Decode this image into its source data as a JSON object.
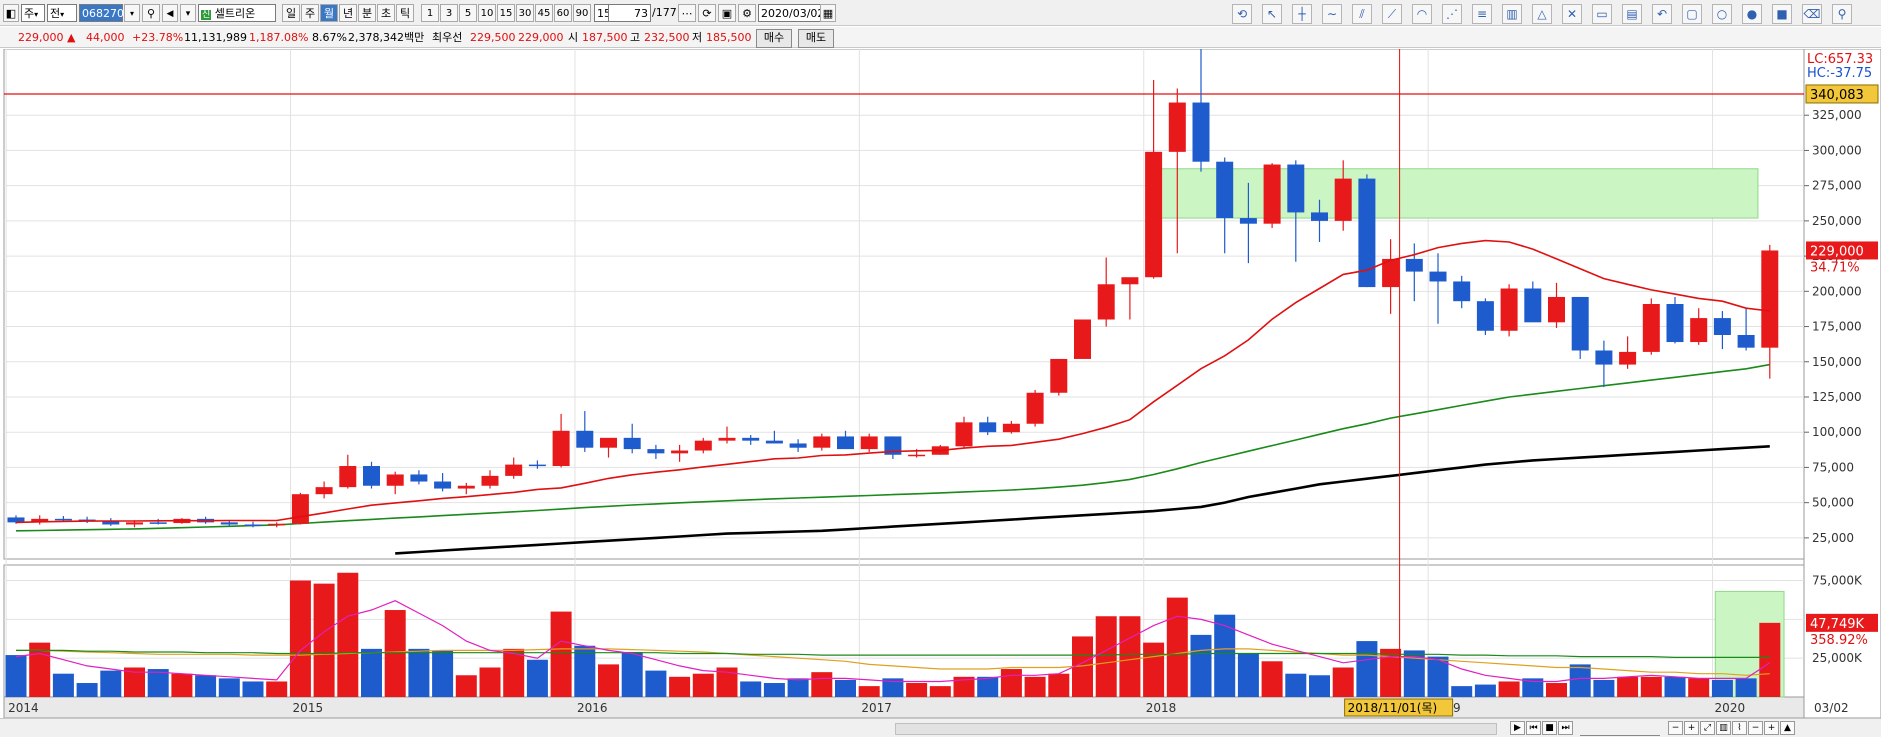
{
  "toolbar": {
    "left_combo": "주",
    "mode_combo": "전",
    "code": "068270",
    "stock_name": "셀트리온",
    "periods": [
      "일",
      "주",
      "월",
      "년",
      "분",
      "초",
      "틱"
    ],
    "active_period": "월",
    "intervals": [
      "1",
      "3",
      "5",
      "10",
      "15",
      "30",
      "45",
      "60",
      "90"
    ],
    "interval_value": "15",
    "count": "73",
    "count_total": "/177",
    "date": "2020/03/02"
  },
  "infobar": {
    "price": "229,000 ▲",
    "change": "44,000",
    "change_pct": "+23.78%",
    "volume": "11,131,989",
    "volume_pct": "1,187.08%",
    "turnover": "8.67%",
    "amount": "2,378,342백만",
    "priority_label": "최우선",
    "priority_ask": "229,500",
    "priority_bid": "229,000",
    "open_label": "시",
    "open": "187,500",
    "high_label": "고",
    "high": "232,500",
    "low_label": "저",
    "low": "185,500",
    "buy_label": "매수",
    "sell_label": "매도"
  },
  "colors": {
    "up": "#e8191a",
    "down": "#1e5bcc",
    "ma_red": "#e01010",
    "ma_green": "#1a8a1a",
    "ma_black": "#000000",
    "vol_ma_pink": "#e020c0",
    "vol_ma_orange": "#e0a020",
    "box_fill": "#ccf5c4"
  },
  "chart_data": {
    "type": "candlestick",
    "period": "monthly",
    "x": [
      "2014-01",
      "2014-02",
      "2014-03",
      "2014-04",
      "2014-05",
      "2014-06",
      "2014-07",
      "2014-08",
      "2014-09",
      "2014-10",
      "2014-11",
      "2014-12",
      "2015-01",
      "2015-02",
      "2015-03",
      "2015-04",
      "2015-05",
      "2015-06",
      "2015-07",
      "2015-08",
      "2015-09",
      "2015-10",
      "2015-11",
      "2015-12",
      "2016-01",
      "2016-02",
      "2016-03",
      "2016-04",
      "2016-05",
      "2016-06",
      "2016-07",
      "2016-08",
      "2016-09",
      "2016-10",
      "2016-11",
      "2016-12",
      "2017-01",
      "2017-02",
      "2017-03",
      "2017-04",
      "2017-05",
      "2017-06",
      "2017-07",
      "2017-08",
      "2017-09",
      "2017-10",
      "2017-11",
      "2017-12",
      "2018-01",
      "2018-02",
      "2018-03",
      "2018-04",
      "2018-05",
      "2018-06",
      "2018-07",
      "2018-08",
      "2018-09",
      "2018-10",
      "2018-11",
      "2018-12",
      "2019-01",
      "2019-02",
      "2019-03",
      "2019-04",
      "2019-05",
      "2019-06",
      "2019-07",
      "2019-08",
      "2019-09",
      "2019-10",
      "2019-11",
      "2019-12",
      "2020-01",
      "2020-02",
      "2020-03"
    ],
    "ohlc": [
      [
        39500,
        41000,
        35000,
        36000
      ],
      [
        36000,
        41000,
        34500,
        38500
      ],
      [
        38500,
        40500,
        36500,
        38000
      ],
      [
        38000,
        40000,
        35500,
        37000
      ],
      [
        37000,
        39000,
        33500,
        34500
      ],
      [
        34500,
        37500,
        32500,
        36000
      ],
      [
        36000,
        38500,
        34500,
        35500
      ],
      [
        35500,
        39000,
        35000,
        38500
      ],
      [
        38500,
        40000,
        35000,
        36000
      ],
      [
        36000,
        37500,
        33000,
        34500
      ],
      [
        34500,
        36500,
        32500,
        34000
      ],
      [
        34000,
        36000,
        32500,
        35000
      ],
      [
        35000,
        57000,
        34500,
        56000
      ],
      [
        56000,
        65000,
        53000,
        61000
      ],
      [
        61000,
        84000,
        60000,
        76000
      ],
      [
        76000,
        79000,
        60000,
        62000
      ],
      [
        62000,
        72000,
        56000,
        70000
      ],
      [
        70000,
        73000,
        63000,
        65000
      ],
      [
        65000,
        71000,
        58000,
        60000
      ],
      [
        60000,
        64000,
        56000,
        62000
      ],
      [
        62000,
        73000,
        60000,
        69000
      ],
      [
        69000,
        82000,
        67000,
        77000
      ],
      [
        77000,
        80000,
        74000,
        76000
      ],
      [
        76000,
        113000,
        75000,
        101000
      ],
      [
        101000,
        115000,
        86000,
        89000
      ],
      [
        89000,
        95000,
        82000,
        96000
      ],
      [
        96000,
        106000,
        85000,
        88000
      ],
      [
        88000,
        91000,
        81000,
        85000
      ],
      [
        85000,
        91000,
        79000,
        87000
      ],
      [
        87000,
        96000,
        85000,
        94000
      ],
      [
        94000,
        104000,
        92000,
        96000
      ],
      [
        96000,
        98000,
        91000,
        94000
      ],
      [
        94000,
        101000,
        93000,
        92000
      ],
      [
        92000,
        95000,
        86000,
        89000
      ],
      [
        89000,
        99000,
        87000,
        97000
      ],
      [
        97000,
        101000,
        89000,
        88000
      ],
      [
        88000,
        99000,
        86000,
        97000
      ],
      [
        97000,
        97000,
        81000,
        84000
      ],
      [
        84000,
        88000,
        82000,
        84000
      ],
      [
        84000,
        91000,
        84000,
        90000
      ],
      [
        90000,
        111000,
        89000,
        107000
      ],
      [
        107000,
        111000,
        98000,
        100000
      ],
      [
        100000,
        108000,
        99000,
        106000
      ],
      [
        106000,
        130000,
        104000,
        128000
      ],
      [
        128000,
        152000,
        126000,
        152000
      ],
      [
        152000,
        179000,
        152000,
        180000
      ],
      [
        180000,
        224000,
        175000,
        205000
      ],
      [
        205000,
        209000,
        180000,
        210000
      ],
      [
        210000,
        350000,
        209000,
        299000
      ],
      [
        299000,
        344000,
        227000,
        334000
      ],
      [
        334000,
        378000,
        285000,
        292000
      ],
      [
        292000,
        295000,
        227000,
        252000
      ],
      [
        252000,
        277000,
        220000,
        248000
      ],
      [
        248000,
        291000,
        245000,
        290000
      ],
      [
        290000,
        293000,
        221000,
        256000
      ],
      [
        256000,
        265000,
        235000,
        250000
      ],
      [
        250000,
        293000,
        243000,
        280000
      ],
      [
        280000,
        283000,
        203000,
        203000
      ],
      [
        203000,
        237000,
        184000,
        223000
      ],
      [
        223000,
        234000,
        193000,
        214000
      ],
      [
        214000,
        227000,
        177000,
        207000
      ],
      [
        207000,
        211000,
        188000,
        193000
      ],
      [
        193000,
        195000,
        169000,
        172000
      ],
      [
        172000,
        205000,
        168000,
        202000
      ],
      [
        202000,
        207000,
        179000,
        178000
      ],
      [
        178000,
        206000,
        174000,
        196000
      ],
      [
        196000,
        196000,
        152000,
        158000
      ],
      [
        158000,
        165000,
        132000,
        148000
      ],
      [
        148000,
        168000,
        145000,
        157000
      ],
      [
        157000,
        195000,
        155000,
        191000
      ],
      [
        191000,
        196000,
        163000,
        164000
      ],
      [
        164000,
        188000,
        162000,
        181000
      ],
      [
        181000,
        186000,
        159000,
        169000
      ],
      [
        169000,
        188000,
        158000,
        160000
      ],
      [
        160000,
        233000,
        138000,
        229000
      ]
    ],
    "volume": [
      27000,
      35000,
      15000,
      9000,
      17000,
      19000,
      18000,
      15000,
      14000,
      12000,
      10000,
      10000,
      75000,
      73000,
      80000,
      31000,
      56000,
      31000,
      30000,
      14000,
      19000,
      31000,
      24000,
      55000,
      33000,
      21000,
      29000,
      17000,
      13000,
      15000,
      19000,
      10000,
      9000,
      12000,
      16000,
      11000,
      7000,
      12000,
      9000,
      7000,
      13000,
      13000,
      18000,
      13000,
      15000,
      39000,
      52000,
      52000,
      35000,
      64000,
      40000,
      53000,
      28000,
      23000,
      15000,
      14000,
      19000,
      36000,
      31000,
      30000,
      26000,
      7000,
      8000,
      10000,
      12000,
      9000,
      21000,
      11000,
      13000,
      13000,
      13000,
      12000,
      11000,
      12000,
      47749
    ],
    "y_ticks": [
      "325,000",
      "300,000",
      "275,000",
      "250,000",
      "225,000",
      "200,000",
      "175,000",
      "150,000",
      "125,000",
      "100,000",
      "75,000",
      "50,000",
      "25,000"
    ],
    "ylim": [
      10000,
      372000
    ],
    "vol_ticks": [
      "75,000K",
      "50,000K",
      "25,000K"
    ],
    "vol_ylim": [
      0,
      85000
    ],
    "x_ticks": [
      "2014",
      "2015",
      "2016",
      "2017",
      "2018",
      "2019",
      "2020"
    ],
    "x_tick_index": [
      0,
      12,
      24,
      36,
      48,
      60,
      72
    ],
    "right_date": "03/02",
    "crosshair_date": "2018/11/01(목)",
    "crosshair_index": 58,
    "lc_label": "LC:657.33",
    "hc_label": "HC:-37.75",
    "hline_value": 340083,
    "hline_label": "340,083",
    "price_label": "229,000",
    "price_change_pct": "34.71%",
    "vol_label": "47,749K",
    "vol_pct": "358.92%",
    "ma_red": {
      "start": 0,
      "values": [
        36000,
        36400,
        36700,
        36900,
        37000,
        37000,
        37100,
        37200,
        37200,
        37300,
        37300,
        37300,
        40000,
        42700,
        45500,
        48200,
        49800,
        51300,
        53000,
        54200,
        55700,
        57300,
        59400,
        60500,
        63700,
        67200,
        69800,
        71600,
        73300,
        75400,
        77200,
        79100,
        81100,
        81700,
        83500,
        83900,
        85200,
        86300,
        86800,
        87100,
        88700,
        90000,
        90600,
        92800,
        95000,
        99000,
        103500,
        108900,
        121600,
        133300,
        145100,
        154200,
        165500,
        180200,
        192000,
        202000,
        212000,
        215000,
        222000,
        226000,
        231000,
        234000,
        236000,
        235000,
        230000,
        223000,
        216000,
        209000,
        205000,
        201000,
        198000,
        195000,
        193000,
        188000,
        186000
      ]
    },
    "ma_green": {
      "start": 0,
      "values": [
        30000,
        30200,
        30500,
        30800,
        31100,
        31400,
        31800,
        32200,
        32700,
        33200,
        33700,
        34200,
        35200,
        36200,
        37200,
        38100,
        39000,
        39900,
        40800,
        41700,
        42600,
        43500,
        44400,
        45400,
        46500,
        47400,
        48300,
        49100,
        49900,
        50600,
        51300,
        52000,
        52700,
        53300,
        53900,
        54500,
        55100,
        55700,
        56300,
        56900,
        57600,
        58300,
        59000,
        59900,
        61000,
        62400,
        64200,
        66500,
        70000,
        74000,
        78500,
        82500,
        86500,
        90500,
        94500,
        98500,
        102500,
        106000,
        110000,
        113000,
        116000,
        119000,
        122000,
        125000,
        127000,
        129000,
        131000,
        133000,
        135000,
        137000,
        139000,
        141000,
        143000,
        145000,
        148000
      ]
    },
    "ma_black": {
      "start": 16,
      "values": [
        14000,
        15000,
        16000,
        17000,
        18000,
        19000,
        20000,
        21000,
        22000,
        23000,
        24000,
        25000,
        26000,
        27000,
        28000,
        28500,
        29000,
        29500,
        30000,
        31000,
        32000,
        33000,
        34000,
        35000,
        36000,
        37000,
        38000,
        39000,
        40000,
        41000,
        42000,
        43000,
        44000,
        45500,
        47000,
        50000,
        54000,
        57000,
        60000,
        63000,
        65000,
        67000,
        69000,
        71000,
        73000,
        75000,
        77000,
        78500,
        80000,
        81000,
        82000,
        83000,
        84000,
        85000,
        86000,
        87000,
        88000,
        89000,
        90000
      ]
    },
    "vol_ma_pink": [
      26000,
      28000,
      24000,
      20000,
      18000,
      16000,
      16000,
      15000,
      14000,
      13000,
      12000,
      11000,
      30000,
      42000,
      52000,
      56000,
      62000,
      54000,
      46000,
      36000,
      30000,
      28000,
      25000,
      36000,
      33000,
      30000,
      28000,
      24000,
      20000,
      17000,
      16000,
      14000,
      12000,
      11000,
      12000,
      12000,
      11000,
      10000,
      10000,
      10000,
      11000,
      12000,
      14000,
      14000,
      15000,
      22000,
      30000,
      38000,
      46000,
      52000,
      50000,
      46000,
      40000,
      34000,
      30000,
      26000,
      22000,
      24000,
      26000,
      26000,
      24000,
      18000,
      14000,
      12000,
      10000,
      10000,
      12000,
      12000,
      13000,
      14000,
      13000,
      12000,
      12000,
      12000,
      22000
    ],
    "vol_ma_orange": [
      30000,
      30000,
      29500,
      29000,
      28500,
      28000,
      27500,
      27500,
      27500,
      27500,
      27000,
      27000,
      27000,
      27500,
      28000,
      28500,
      29000,
      29500,
      30000,
      30000,
      30000,
      30000,
      30500,
      31000,
      31000,
      31000,
      30500,
      30000,
      29500,
      29000,
      28000,
      27000,
      26000,
      25000,
      24000,
      23000,
      21000,
      20000,
      19000,
      18000,
      18000,
      18000,
      19000,
      19000,
      19000,
      20000,
      22000,
      24000,
      26000,
      28000,
      30000,
      31000,
      31000,
      30000,
      29000,
      28000,
      27000,
      27000,
      26000,
      25000,
      24000,
      23000,
      22000,
      21000,
      20000,
      19000,
      19000,
      18000,
      17000,
      16000,
      16000,
      15000,
      15000,
      14000,
      15000
    ],
    "vol_ma_green": [
      30000,
      30000,
      30000,
      29500,
      29500,
      29000,
      29000,
      29000,
      28500,
      28500,
      28500,
      28000,
      28000,
      28000,
      28500,
      28500,
      28500,
      28500,
      28500,
      28500,
      28500,
      28500,
      28500,
      28500,
      28500,
      28500,
      28500,
      28500,
      28000,
      28000,
      28000,
      27500,
      27500,
      27500,
      27000,
      27000,
      27000,
      27000,
      27000,
      27000,
      27000,
      27000,
      27000,
      27000,
      27000,
      27000,
      27000,
      27500,
      27500,
      27500,
      28000,
      28000,
      28000,
      28000,
      28000,
      28000,
      28000,
      28000,
      27500,
      27500,
      27500,
      27000,
      27000,
      26500,
      26500,
      26500,
      26000,
      26000,
      26000,
      26000,
      25500,
      25500,
      25500,
      25500,
      25500
    ],
    "zone_price": {
      "x_from": 47.7,
      "x_to": 73.5,
      "y_from": 252000,
      "y_to": 287000
    },
    "zone_volume": {
      "x_from": 71.7,
      "x_to": 74.6,
      "y_from": 0,
      "y_to": 68000
    }
  }
}
